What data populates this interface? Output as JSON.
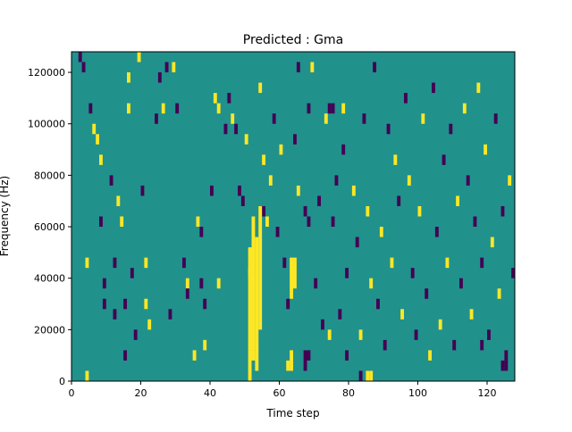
{
  "chart_data": {
    "type": "heatmap",
    "title": "Predicted : Gma",
    "xlabel": "Time step",
    "ylabel": "Frequency (Hz)",
    "xlim": [
      0,
      128
    ],
    "ylim": [
      0,
      128000
    ],
    "x_ticks": [
      0,
      20,
      40,
      60,
      80,
      100,
      120
    ],
    "x_tick_labels": [
      "0",
      "20",
      "40",
      "60",
      "80",
      "100",
      "120"
    ],
    "y_ticks": [
      0,
      20000,
      40000,
      60000,
      80000,
      100000,
      120000
    ],
    "y_tick_labels": [
      "0",
      "20000",
      "40000",
      "60000",
      "80000",
      "100000",
      "120000"
    ],
    "grid": false,
    "colors": {
      "background_class": "#21918c",
      "high_class": "#fde725",
      "low_class": "#440154"
    },
    "cells": [
      {
        "t": 2,
        "f_start": 124000,
        "f_end": 128000,
        "class": "low"
      },
      {
        "t": 3,
        "f_start": 120000,
        "f_end": 124000,
        "class": "low"
      },
      {
        "t": 4,
        "f_start": 0,
        "f_end": 4000,
        "class": "high"
      },
      {
        "t": 4,
        "f_start": 44000,
        "f_end": 48000,
        "class": "high"
      },
      {
        "t": 5,
        "f_start": 104000,
        "f_end": 108000,
        "class": "low"
      },
      {
        "t": 6,
        "f_start": 96000,
        "f_end": 100000,
        "class": "high"
      },
      {
        "t": 7,
        "f_start": 92000,
        "f_end": 96000,
        "class": "high"
      },
      {
        "t": 8,
        "f_start": 84000,
        "f_end": 88000,
        "class": "high"
      },
      {
        "t": 8,
        "f_start": 60000,
        "f_end": 64000,
        "class": "low"
      },
      {
        "t": 9,
        "f_start": 36000,
        "f_end": 40000,
        "class": "low"
      },
      {
        "t": 9,
        "f_start": 28000,
        "f_end": 32000,
        "class": "low"
      },
      {
        "t": 11,
        "f_start": 76000,
        "f_end": 80000,
        "class": "low"
      },
      {
        "t": 12,
        "f_start": 44000,
        "f_end": 48000,
        "class": "low"
      },
      {
        "t": 12,
        "f_start": 24000,
        "f_end": 28000,
        "class": "low"
      },
      {
        "t": 13,
        "f_start": 68000,
        "f_end": 72000,
        "class": "high"
      },
      {
        "t": 14,
        "f_start": 60000,
        "f_end": 64000,
        "class": "high"
      },
      {
        "t": 15,
        "f_start": 28000,
        "f_end": 32000,
        "class": "low"
      },
      {
        "t": 15,
        "f_start": 8000,
        "f_end": 12000,
        "class": "low"
      },
      {
        "t": 16,
        "f_start": 116000,
        "f_end": 120000,
        "class": "high"
      },
      {
        "t": 16,
        "f_start": 104000,
        "f_end": 108000,
        "class": "high"
      },
      {
        "t": 17,
        "f_start": 40000,
        "f_end": 44000,
        "class": "low"
      },
      {
        "t": 18,
        "f_start": 16000,
        "f_end": 20000,
        "class": "low"
      },
      {
        "t": 19,
        "f_start": 124000,
        "f_end": 128000,
        "class": "high"
      },
      {
        "t": 20,
        "f_start": 72000,
        "f_end": 76000,
        "class": "low"
      },
      {
        "t": 21,
        "f_start": 44000,
        "f_end": 48000,
        "class": "high"
      },
      {
        "t": 21,
        "f_start": 28000,
        "f_end": 32000,
        "class": "high"
      },
      {
        "t": 22,
        "f_start": 20000,
        "f_end": 24000,
        "class": "high"
      },
      {
        "t": 24,
        "f_start": 100000,
        "f_end": 104000,
        "class": "low"
      },
      {
        "t": 25,
        "f_start": 116000,
        "f_end": 120000,
        "class": "low"
      },
      {
        "t": 26,
        "f_start": 104000,
        "f_end": 108000,
        "class": "high"
      },
      {
        "t": 27,
        "f_start": 120000,
        "f_end": 124000,
        "class": "low"
      },
      {
        "t": 28,
        "f_start": 24000,
        "f_end": 28000,
        "class": "low"
      },
      {
        "t": 29,
        "f_start": 120000,
        "f_end": 124000,
        "class": "high"
      },
      {
        "t": 30,
        "f_start": 104000,
        "f_end": 108000,
        "class": "low"
      },
      {
        "t": 32,
        "f_start": 44000,
        "f_end": 48000,
        "class": "low"
      },
      {
        "t": 33,
        "f_start": 36000,
        "f_end": 40000,
        "class": "high"
      },
      {
        "t": 33,
        "f_start": 32000,
        "f_end": 36000,
        "class": "low"
      },
      {
        "t": 35,
        "f_start": 8000,
        "f_end": 12000,
        "class": "high"
      },
      {
        "t": 36,
        "f_start": 60000,
        "f_end": 64000,
        "class": "high"
      },
      {
        "t": 37,
        "f_start": 56000,
        "f_end": 60000,
        "class": "low"
      },
      {
        "t": 37,
        "f_start": 36000,
        "f_end": 40000,
        "class": "low"
      },
      {
        "t": 38,
        "f_start": 28000,
        "f_end": 32000,
        "class": "low"
      },
      {
        "t": 38,
        "f_start": 12000,
        "f_end": 16000,
        "class": "high"
      },
      {
        "t": 40,
        "f_start": 72000,
        "f_end": 76000,
        "class": "low"
      },
      {
        "t": 41,
        "f_start": 108000,
        "f_end": 112000,
        "class": "high"
      },
      {
        "t": 42,
        "f_start": 104000,
        "f_end": 108000,
        "class": "high"
      },
      {
        "t": 44,
        "f_start": 96000,
        "f_end": 100000,
        "class": "low"
      },
      {
        "t": 45,
        "f_start": 108000,
        "f_end": 112000,
        "class": "low"
      },
      {
        "t": 46,
        "f_start": 100000,
        "f_end": 104000,
        "class": "high"
      },
      {
        "t": 47,
        "f_start": 96000,
        "f_end": 100000,
        "class": "low"
      },
      {
        "t": 48,
        "f_start": 72000,
        "f_end": 76000,
        "class": "low"
      },
      {
        "t": 49,
        "f_start": 68000,
        "f_end": 72000,
        "class": "low"
      },
      {
        "t": 50,
        "f_start": 92000,
        "f_end": 96000,
        "class": "high"
      },
      {
        "t": 51,
        "f_start": 40000,
        "f_end": 44000,
        "class": "high"
      },
      {
        "t": 52,
        "f_start": 8000,
        "f_end": 12000,
        "class": "high"
      },
      {
        "t": 54,
        "f_start": 112000,
        "f_end": 116000,
        "class": "high"
      },
      {
        "t": 55,
        "f_start": 84000,
        "f_end": 88000,
        "class": "high"
      },
      {
        "t": 55,
        "f_start": 64000,
        "f_end": 68000,
        "class": "low"
      },
      {
        "t": 56,
        "f_start": 60000,
        "f_end": 64000,
        "class": "high"
      },
      {
        "t": 57,
        "f_start": 76000,
        "f_end": 80000,
        "class": "high"
      },
      {
        "t": 58,
        "f_start": 100000,
        "f_end": 104000,
        "class": "low"
      },
      {
        "t": 59,
        "f_start": 56000,
        "f_end": 60000,
        "class": "low"
      },
      {
        "t": 60,
        "f_start": 88000,
        "f_end": 92000,
        "class": "high"
      },
      {
        "t": 61,
        "f_start": 44000,
        "f_end": 48000,
        "class": "low"
      },
      {
        "t": 62,
        "f_start": 28000,
        "f_end": 32000,
        "class": "low"
      },
      {
        "t": 62,
        "f_start": 4000,
        "f_end": 8000,
        "class": "high"
      },
      {
        "t": 64,
        "f_start": 92000,
        "f_end": 96000,
        "class": "low"
      },
      {
        "t": 65,
        "f_start": 120000,
        "f_end": 124000,
        "class": "low"
      },
      {
        "t": 65,
        "f_start": 72000,
        "f_end": 76000,
        "class": "high"
      },
      {
        "t": 67,
        "f_start": 64000,
        "f_end": 68000,
        "class": "low"
      },
      {
        "t": 68,
        "f_start": 104000,
        "f_end": 108000,
        "class": "low"
      },
      {
        "t": 69,
        "f_start": 120000,
        "f_end": 124000,
        "class": "high"
      },
      {
        "t": 70,
        "f_start": 36000,
        "f_end": 40000,
        "class": "low"
      },
      {
        "t": 71,
        "f_start": 68000,
        "f_end": 72000,
        "class": "low"
      },
      {
        "t": 72,
        "f_start": 20000,
        "f_end": 24000,
        "class": "low"
      },
      {
        "t": 73,
        "f_start": 100000,
        "f_end": 104000,
        "class": "high"
      },
      {
        "t": 74,
        "f_start": 16000,
        "f_end": 20000,
        "class": "high"
      },
      {
        "t": 75,
        "f_start": 60000,
        "f_end": 64000,
        "class": "low"
      },
      {
        "t": 76,
        "f_start": 76000,
        "f_end": 80000,
        "class": "low"
      },
      {
        "t": 77,
        "f_start": 24000,
        "f_end": 28000,
        "class": "low"
      },
      {
        "t": 78,
        "f_start": 88000,
        "f_end": 92000,
        "class": "low"
      },
      {
        "t": 79,
        "f_start": 40000,
        "f_end": 44000,
        "class": "low"
      },
      {
        "t": 79,
        "f_start": 8000,
        "f_end": 12000,
        "class": "low"
      },
      {
        "t": 81,
        "f_start": 72000,
        "f_end": 76000,
        "class": "high"
      },
      {
        "t": 82,
        "f_start": 52000,
        "f_end": 56000,
        "class": "low"
      },
      {
        "t": 83,
        "f_start": 16000,
        "f_end": 20000,
        "class": "high"
      },
      {
        "t": 84,
        "f_start": 100000,
        "f_end": 104000,
        "class": "low"
      },
      {
        "t": 85,
        "f_start": 64000,
        "f_end": 68000,
        "class": "high"
      },
      {
        "t": 86,
        "f_start": 36000,
        "f_end": 40000,
        "class": "high"
      },
      {
        "t": 87,
        "f_start": 120000,
        "f_end": 124000,
        "class": "low"
      },
      {
        "t": 88,
        "f_start": 28000,
        "f_end": 32000,
        "class": "low"
      },
      {
        "t": 89,
        "f_start": 56000,
        "f_end": 60000,
        "class": "high"
      },
      {
        "t": 90,
        "f_start": 12000,
        "f_end": 16000,
        "class": "low"
      },
      {
        "t": 91,
        "f_start": 96000,
        "f_end": 100000,
        "class": "low"
      },
      {
        "t": 92,
        "f_start": 44000,
        "f_end": 48000,
        "class": "high"
      },
      {
        "t": 93,
        "f_start": 84000,
        "f_end": 88000,
        "class": "high"
      },
      {
        "t": 94,
        "f_start": 68000,
        "f_end": 72000,
        "class": "low"
      },
      {
        "t": 95,
        "f_start": 24000,
        "f_end": 28000,
        "class": "high"
      },
      {
        "t": 96,
        "f_start": 108000,
        "f_end": 112000,
        "class": "low"
      },
      {
        "t": 97,
        "f_start": 76000,
        "f_end": 80000,
        "class": "high"
      },
      {
        "t": 98,
        "f_start": 40000,
        "f_end": 44000,
        "class": "low"
      },
      {
        "t": 99,
        "f_start": 16000,
        "f_end": 20000,
        "class": "low"
      },
      {
        "t": 100,
        "f_start": 64000,
        "f_end": 68000,
        "class": "high"
      },
      {
        "t": 101,
        "f_start": 100000,
        "f_end": 104000,
        "class": "high"
      },
      {
        "t": 102,
        "f_start": 32000,
        "f_end": 36000,
        "class": "low"
      },
      {
        "t": 103,
        "f_start": 8000,
        "f_end": 12000,
        "class": "high"
      },
      {
        "t": 104,
        "f_start": 112000,
        "f_end": 116000,
        "class": "low"
      },
      {
        "t": 105,
        "f_start": 56000,
        "f_end": 60000,
        "class": "low"
      },
      {
        "t": 106,
        "f_start": 20000,
        "f_end": 24000,
        "class": "high"
      },
      {
        "t": 107,
        "f_start": 84000,
        "f_end": 88000,
        "class": "low"
      },
      {
        "t": 108,
        "f_start": 44000,
        "f_end": 48000,
        "class": "high"
      },
      {
        "t": 109,
        "f_start": 96000,
        "f_end": 100000,
        "class": "low"
      },
      {
        "t": 110,
        "f_start": 12000,
        "f_end": 16000,
        "class": "low"
      },
      {
        "t": 111,
        "f_start": 68000,
        "f_end": 72000,
        "class": "high"
      },
      {
        "t": 112,
        "f_start": 36000,
        "f_end": 40000,
        "class": "low"
      },
      {
        "t": 113,
        "f_start": 104000,
        "f_end": 108000,
        "class": "high"
      },
      {
        "t": 114,
        "f_start": 76000,
        "f_end": 80000,
        "class": "low"
      },
      {
        "t": 115,
        "f_start": 24000,
        "f_end": 28000,
        "class": "high"
      },
      {
        "t": 116,
        "f_start": 60000,
        "f_end": 64000,
        "class": "low"
      },
      {
        "t": 117,
        "f_start": 112000,
        "f_end": 116000,
        "class": "high"
      },
      {
        "t": 118,
        "f_start": 44000,
        "f_end": 48000,
        "class": "low"
      },
      {
        "t": 119,
        "f_start": 88000,
        "f_end": 92000,
        "class": "high"
      },
      {
        "t": 120,
        "f_start": 16000,
        "f_end": 20000,
        "class": "low"
      },
      {
        "t": 121,
        "f_start": 52000,
        "f_end": 56000,
        "class": "high"
      },
      {
        "t": 122,
        "f_start": 100000,
        "f_end": 104000,
        "class": "low"
      },
      {
        "t": 123,
        "f_start": 32000,
        "f_end": 36000,
        "class": "high"
      },
      {
        "t": 124,
        "f_start": 64000,
        "f_end": 68000,
        "class": "low"
      },
      {
        "t": 125,
        "f_start": 8000,
        "f_end": 12000,
        "class": "low"
      },
      {
        "t": 126,
        "f_start": 76000,
        "f_end": 80000,
        "class": "high"
      },
      {
        "t": 127,
        "f_start": 40000,
        "f_end": 44000,
        "class": "low"
      },
      {
        "t": 51,
        "f_start": 0,
        "f_end": 52000,
        "class": "high"
      },
      {
        "t": 52,
        "f_start": 12000,
        "f_end": 64000,
        "class": "high"
      },
      {
        "t": 53,
        "f_start": 4000,
        "f_end": 56000,
        "class": "high"
      },
      {
        "t": 54,
        "f_start": 20000,
        "f_end": 68000,
        "class": "high"
      },
      {
        "t": 63,
        "f_start": 32000,
        "f_end": 48000,
        "class": "high"
      },
      {
        "t": 64,
        "f_start": 36000,
        "f_end": 48000,
        "class": "high"
      },
      {
        "t": 63,
        "f_start": 4000,
        "f_end": 12000,
        "class": "high"
      },
      {
        "t": 67,
        "f_start": 4000,
        "f_end": 12000,
        "class": "low"
      },
      {
        "t": 68,
        "f_start": 8000,
        "f_end": 12000,
        "class": "low"
      },
      {
        "t": 85,
        "f_start": 0,
        "f_end": 4000,
        "class": "high"
      },
      {
        "t": 86,
        "f_start": 0,
        "f_end": 4000,
        "class": "high"
      },
      {
        "t": 83,
        "f_start": 0,
        "f_end": 4000,
        "class": "low"
      },
      {
        "t": 74,
        "f_start": 104000,
        "f_end": 108000,
        "class": "low"
      },
      {
        "t": 75,
        "f_start": 104000,
        "f_end": 108000,
        "class": "low"
      },
      {
        "t": 78,
        "f_start": 104000,
        "f_end": 108000,
        "class": "high"
      },
      {
        "t": 42,
        "f_start": 36000,
        "f_end": 40000,
        "class": "high"
      },
      {
        "t": 68,
        "f_start": 60000,
        "f_end": 64000,
        "class": "low"
      },
      {
        "t": 118,
        "f_start": 12000,
        "f_end": 16000,
        "class": "low"
      },
      {
        "t": 124,
        "f_start": 4000,
        "f_end": 8000,
        "class": "low"
      },
      {
        "t": 125,
        "f_start": 4000,
        "f_end": 8000,
        "class": "low"
      }
    ]
  }
}
